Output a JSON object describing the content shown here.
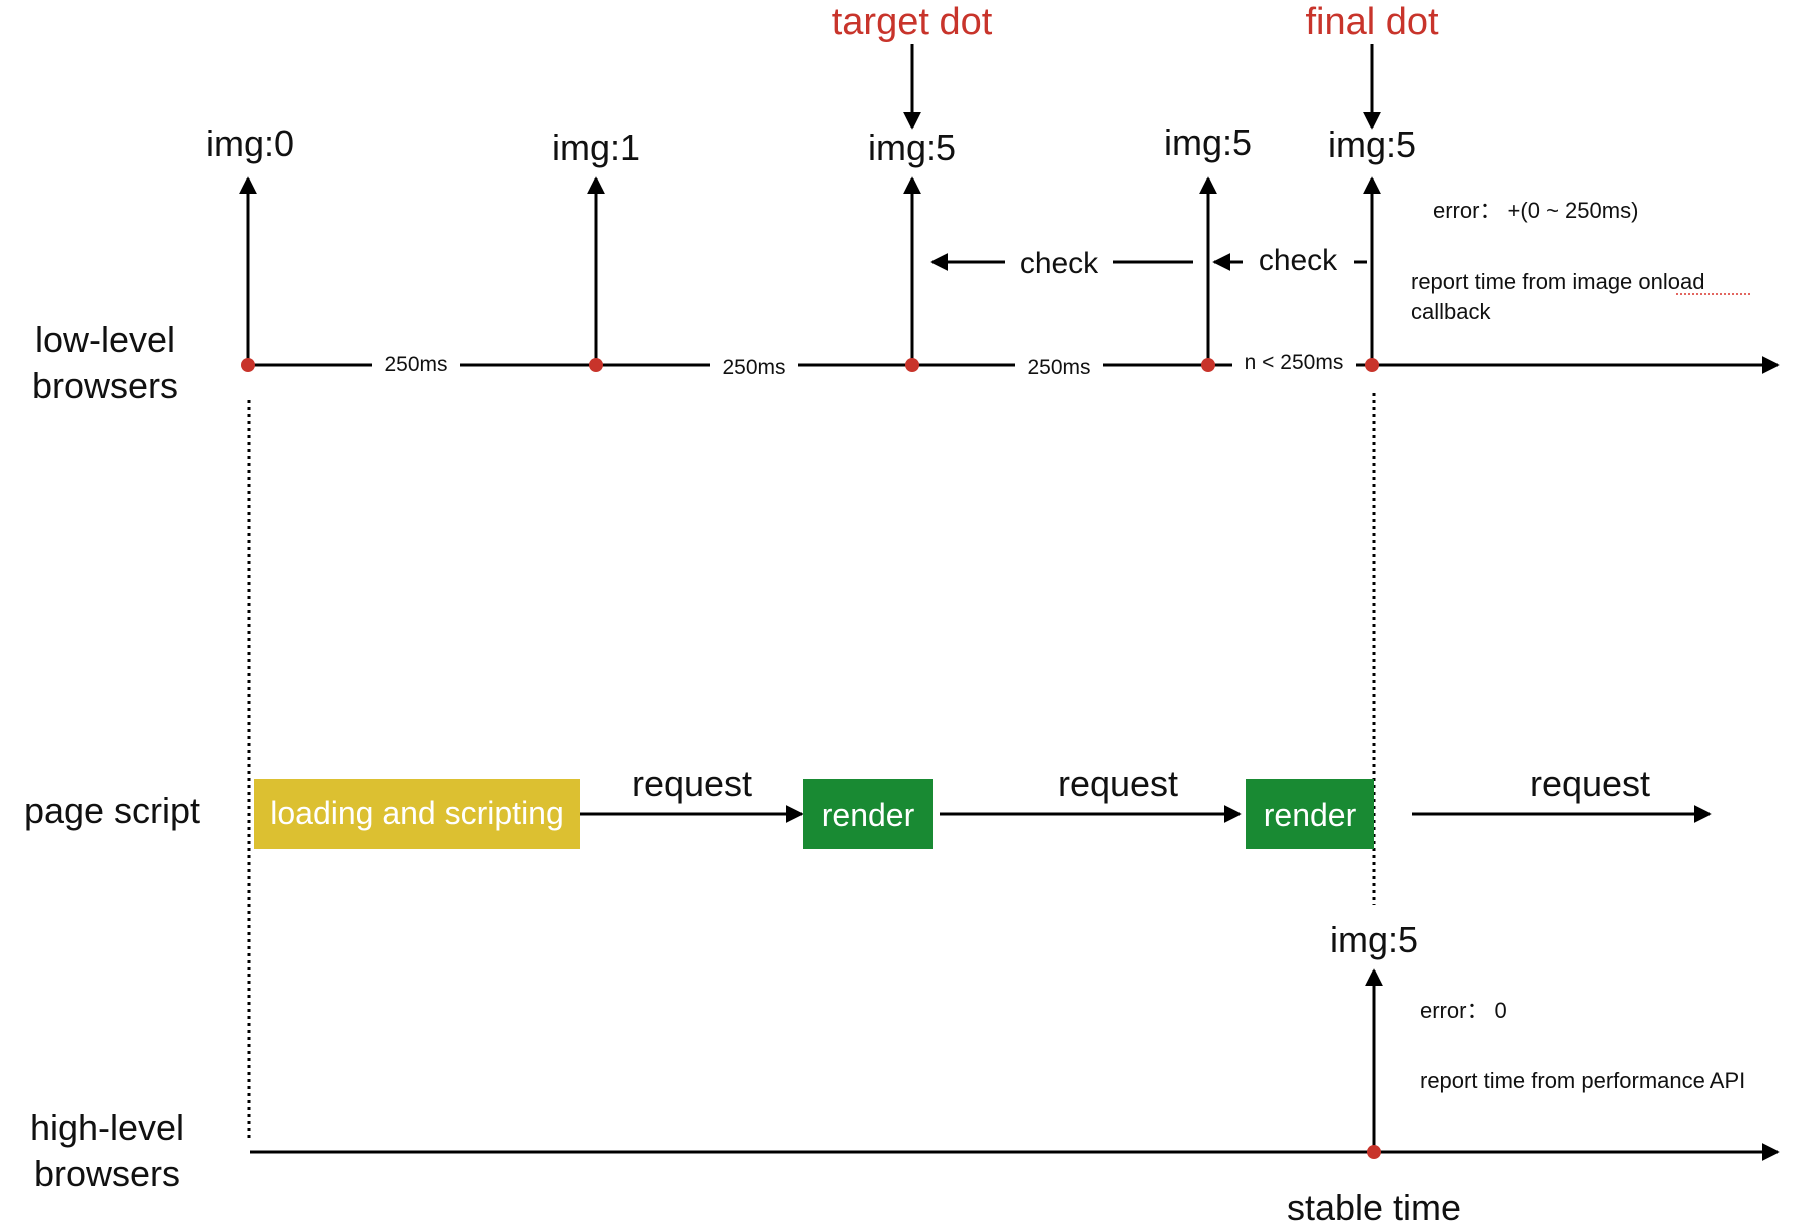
{
  "rows": {
    "low_level": [
      "low-level",
      "browsers"
    ],
    "page_script": "page script",
    "high_level": [
      "high-level",
      "browsers"
    ]
  },
  "annotations": {
    "target": "target dot",
    "final": "final dot"
  },
  "low_level_events": [
    {
      "label": "img:0"
    },
    {
      "label": "img:1"
    },
    {
      "label": "img:5"
    },
    {
      "label": "img:5"
    },
    {
      "label": "img:5"
    }
  ],
  "low_level_intervals": [
    "250ms",
    "250ms",
    "250ms",
    "n < 250ms"
  ],
  "checks": [
    "check",
    "check"
  ],
  "low_level_notes": {
    "error": "error： +(0 ~ 250ms)",
    "report_line1": "report time from image onload",
    "report_line2": "callback"
  },
  "page_script_steps": [
    {
      "kind": "box",
      "label": "loading and scripting",
      "color": "#dcc031"
    },
    {
      "kind": "arrow",
      "label": "request"
    },
    {
      "kind": "box",
      "label": "render",
      "color": "#198a33"
    },
    {
      "kind": "arrow",
      "label": "request"
    },
    {
      "kind": "box",
      "label": "render",
      "color": "#198a33"
    },
    {
      "kind": "arrow",
      "label": "request"
    }
  ],
  "high_level_event": {
    "label": "img:5"
  },
  "high_level_notes": {
    "error": "error： 0",
    "report": "report time from performance API"
  },
  "stable_time": "stable time",
  "colors": {
    "dot": "#c8342b",
    "annotation": "#c8342b",
    "line": "#000000"
  }
}
